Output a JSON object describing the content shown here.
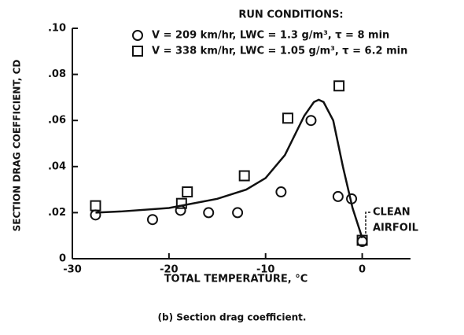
{
  "chart_data": {
    "type": "scatter",
    "legend_title": "RUN CONDITIONS:",
    "xlabel": "TOTAL TEMPERATURE, °C",
    "ylabel": "SECTION DRAG COEFFICIENT, CD",
    "caption": "(b) Section drag coefficient.",
    "annotation": [
      "CLEAN",
      "AIRFOIL"
    ],
    "xlim": [
      -30,
      5
    ],
    "ylim": [
      0,
      0.1
    ],
    "xticks": [
      -30,
      -20,
      -10,
      0
    ],
    "yticks": [
      0,
      {
        "value": 0.02,
        "label": ".02"
      },
      {
        "value": 0.04,
        "label": ".04"
      },
      {
        "value": 0.06,
        "label": ".06"
      },
      {
        "value": 0.08,
        "label": ".08"
      },
      {
        "value": 0.1,
        "label": ".10"
      }
    ],
    "color": "#111111",
    "series": [
      {
        "name": "V = 209 km/hr, LWC = 1.3 g/m³, τ = 8 min",
        "marker": "circle",
        "x": [
          -27.6,
          -21.7,
          -18.8,
          -15.9,
          -12.9,
          -8.4,
          -5.3,
          -2.5,
          -1.1,
          0
        ],
        "values": [
          0.019,
          0.017,
          0.021,
          0.02,
          0.02,
          0.029,
          0.06,
          0.027,
          0.026,
          0.0075
        ]
      },
      {
        "name": "V = 338 km/hr, LWC = 1.05 g/m³, τ = 6.2 min",
        "marker": "square",
        "x": [
          -27.6,
          -18.7,
          -18.1,
          -12.2,
          -7.7,
          -2.4,
          0
        ],
        "values": [
          0.023,
          0.024,
          0.029,
          0.036,
          0.061,
          0.075,
          0.008
        ]
      }
    ],
    "curve": {
      "x": [
        -27.6,
        -25,
        -20,
        -15,
        -12,
        -10,
        -8,
        -6,
        -5,
        -4.5,
        -4,
        -3,
        -2,
        -1,
        0
      ],
      "values": [
        0.02,
        0.0205,
        0.022,
        0.026,
        0.03,
        0.035,
        0.045,
        0.062,
        0.068,
        0.069,
        0.068,
        0.06,
        0.04,
        0.022,
        0.009
      ]
    }
  }
}
